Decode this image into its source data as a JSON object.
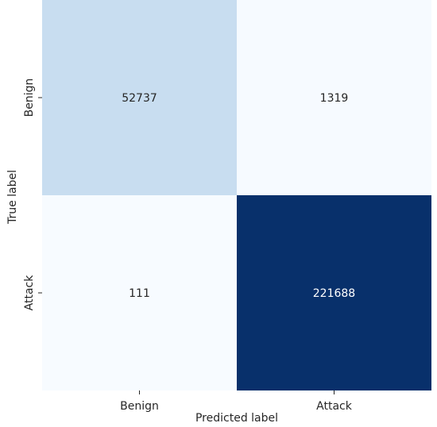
{
  "chart_data": {
    "type": "heatmap",
    "title": "",
    "xlabel": "Predicted label",
    "ylabel": "True label",
    "x_categories": [
      "Benign",
      "Attack"
    ],
    "y_categories": [
      "Benign",
      "Attack"
    ],
    "values": [
      [
        52737,
        1319
      ],
      [
        111,
        221688
      ]
    ],
    "colormap": "Blues",
    "colorbar": false,
    "colors": {
      "low": "#f7fbff",
      "mid": "#c6dbef",
      "high": "#08306b",
      "text_dark": "#262626",
      "text_light": "#ffffff"
    }
  }
}
